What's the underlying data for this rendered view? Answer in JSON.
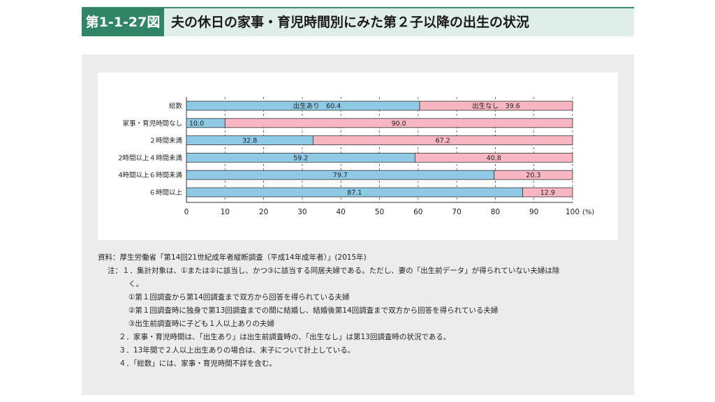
{
  "header": {
    "figure_label": "第1-1-27図",
    "title": "夫の休日の家事・育児時間別にみた第２子以降の出生の状況"
  },
  "colors": {
    "born": "#8ecae6",
    "not_born": "#f7b6c2",
    "title_band": "#dfeee8",
    "label_band": "#2f8566",
    "panel": "#ececec"
  },
  "chart_data": {
    "type": "bar",
    "orientation": "horizontal",
    "stacked": true,
    "categories": [
      "総数",
      "家事・育児時間なし",
      "２時間未満",
      "2時間以上４時間未満",
      "4時間以上６時間未満",
      "６時間以上"
    ],
    "series": [
      {
        "name": "出生あり",
        "values": [
          60.4,
          10.0,
          32.8,
          59.2,
          79.7,
          87.1
        ]
      },
      {
        "name": "出生なし",
        "values": [
          39.6,
          90.0,
          67.2,
          40.8,
          20.3,
          12.9
        ]
      }
    ],
    "value_labels": {
      "born": [
        "出生あり　60.4",
        "10.0",
        "32.8",
        "59.2",
        "79.7",
        "87.1"
      ],
      "not_born": [
        "出生なし　39.6",
        "90.0",
        "67.2",
        "40.8",
        "20.3",
        "12.9"
      ]
    },
    "x_ticks": [
      "0",
      "10",
      "20",
      "30",
      "40",
      "50",
      "60",
      "70",
      "80",
      "90",
      "100"
    ],
    "x_unit": "(%)",
    "xlim": [
      0,
      100
    ],
    "grid": "vertical dashed at 10-unit ticks"
  },
  "notes": {
    "source": "資料：厚生労働省「第14回21世紀成年者縦断調査（平成14年成年者）」(2015年)",
    "lines": [
      "注：１．集計対象は、①または②に該当し、かつ③に該当する同居夫婦である。ただし、妻の「出生前データ」が得られていない夫婦は除",
      "く。",
      "①第１回調査から第14回調査まで双方から回答を得られている夫婦",
      "②第１回調査時に独身で第13回調査までの間に結婚し、結婚後第14回調査まで双方から回答を得られている夫婦",
      "③出生前調査時に子ども１人以上ありの夫婦",
      "２．家事・育児時間は、「出生あり」は出生前調査時の、「出生なし」は第13回調査時の状況である。",
      "３．13年間で２人以上出生ありの場合は、末子について計上している。",
      "４．「総数」には、家事・育児時間不詳を含む。"
    ]
  }
}
